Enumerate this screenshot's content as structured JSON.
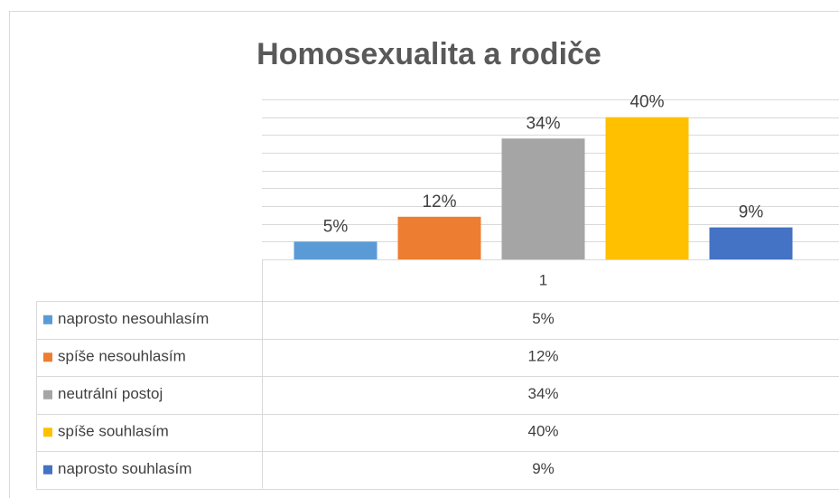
{
  "chart_data": {
    "type": "bar",
    "title": "Homosexualita a rodiče",
    "categories": [
      "1"
    ],
    "series": [
      {
        "name": "naprosto nesouhlasím",
        "color": "#5b9bd5",
        "values": [
          5
        ],
        "value_labels": [
          "5%"
        ]
      },
      {
        "name": "spíše nesouhlasím",
        "color": "#ed7d31",
        "values": [
          12
        ],
        "value_labels": [
          "12%"
        ]
      },
      {
        "name": "neutrální postoj",
        "color": "#a5a5a5",
        "values": [
          34
        ],
        "value_labels": [
          "34%"
        ]
      },
      {
        "name": "spíše souhlasím",
        "color": "#ffc000",
        "values": [
          40
        ],
        "value_labels": [
          "40%"
        ]
      },
      {
        "name": "naprosto souhlasím",
        "color": "#4472c4",
        "values": [
          9
        ],
        "value_labels": [
          "9%"
        ]
      }
    ],
    "ylim": [
      0,
      45
    ],
    "yticks": [
      0,
      5,
      10,
      15,
      20,
      25,
      30,
      35,
      40,
      45
    ],
    "grid": true,
    "data_table": true
  }
}
